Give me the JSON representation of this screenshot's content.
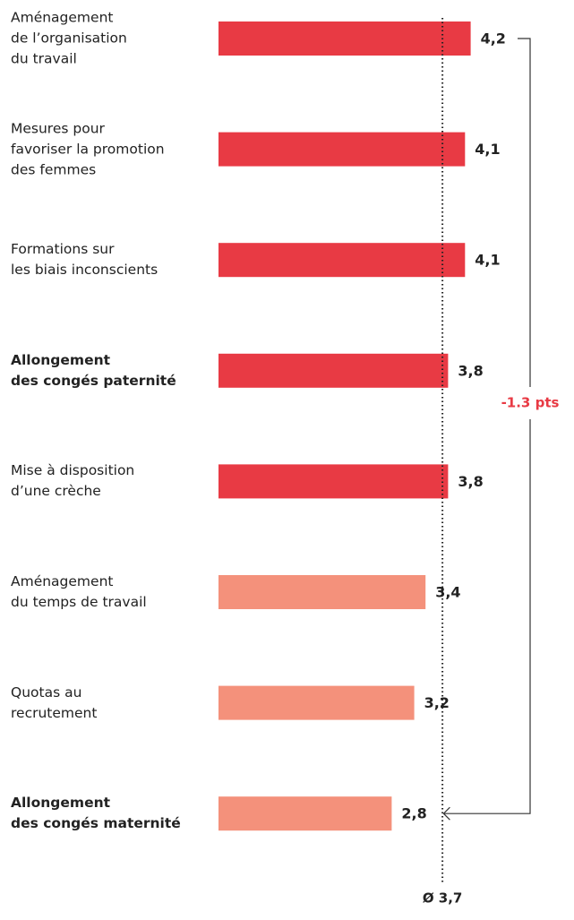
{
  "chart_data": {
    "type": "bar",
    "orientation": "horizontal",
    "categories": [
      "Aménagement\nde l’organisation\ndu travail",
      "Mesures pour\nfavoriser la promotion\ndes femmes",
      "Formations sur\nles biais inconscients",
      "Allongement\ndes congés paternité",
      "Mise à disposition\nd’une crèche",
      "Aménagement\ndu temps de travail",
      "Quotas au\nrecrutement",
      "Allongement\ndes congés maternité"
    ],
    "values": [
      4.2,
      4.1,
      4.1,
      3.8,
      3.8,
      3.4,
      3.2,
      2.8
    ],
    "value_labels": [
      "4,2",
      "4,1",
      "4,1",
      "3,8",
      "3,8",
      "3,4",
      "3,2",
      "2,8"
    ],
    "colors": [
      "#e83a44",
      "#e83a44",
      "#e83a44",
      "#e83a44",
      "#e83a44",
      "#f4917b",
      "#f4917b",
      "#f4917b"
    ],
    "bold_categories": [
      3,
      7
    ],
    "average": {
      "value": 3.7,
      "label": "Ø 3,7"
    },
    "annotation": {
      "text": "-1.3 pts",
      "color": "#e83a44"
    }
  }
}
